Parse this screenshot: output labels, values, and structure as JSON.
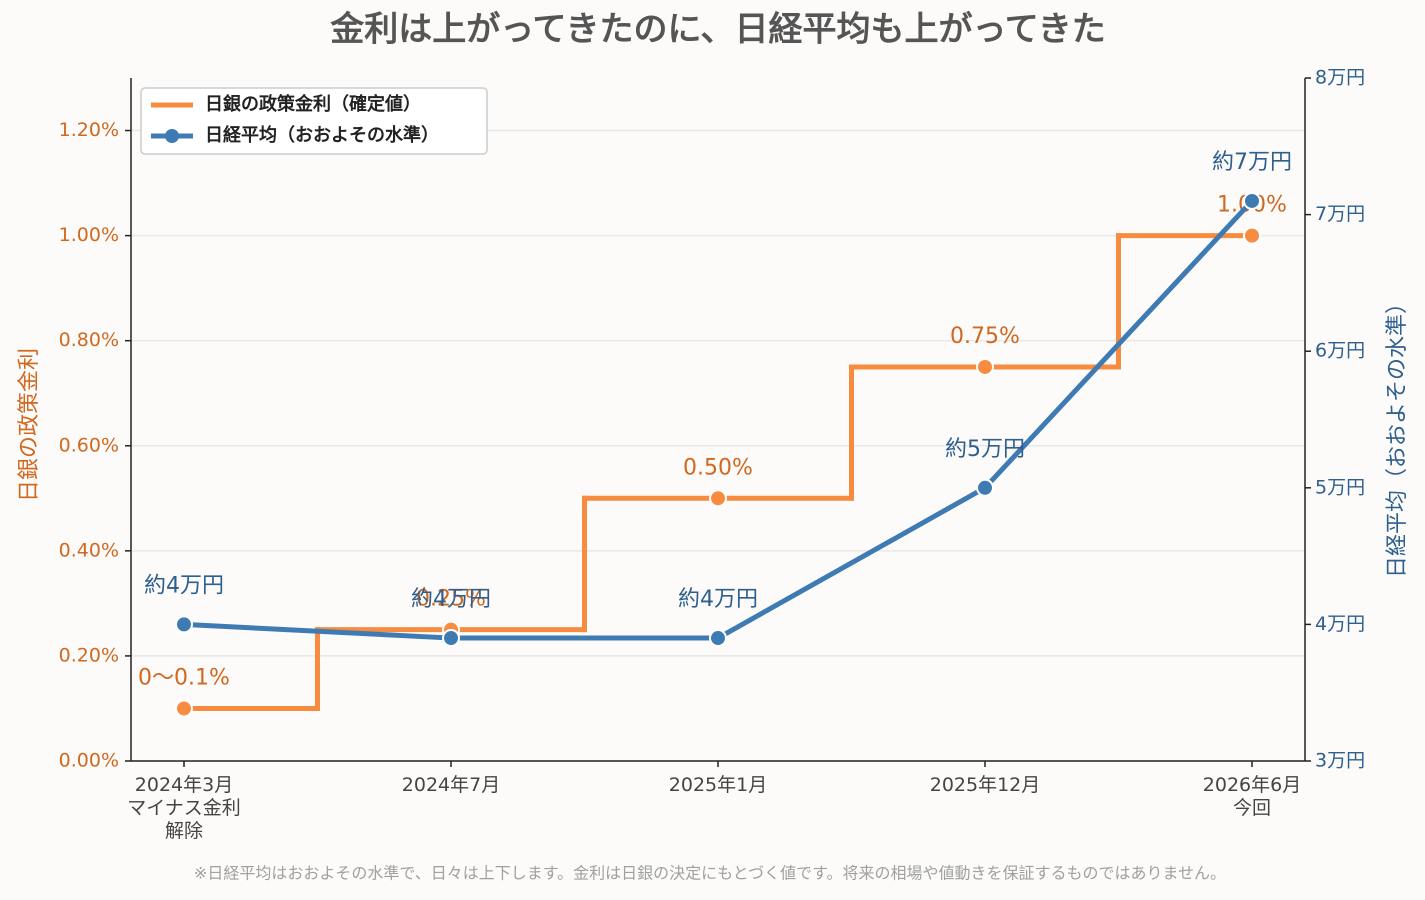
{
  "chart_data": {
    "type": "step-line-dual",
    "title": "金利は上がってきたのに、日経平均も上がってきた",
    "categories": [
      "2024年3月\nマイナス金利\n解除",
      "2024年7月",
      "2025年1月",
      "2025年12月",
      "2026年6月\n今回"
    ],
    "ylabel": "日銀の政策金利",
    "y2label": "日経平均（おおよその水準）",
    "ylim": [
      0,
      1.3
    ],
    "yticks": [
      {
        "value": 0,
        "label": "0.00%"
      },
      {
        "value": 0.2,
        "label": "0.20%"
      },
      {
        "value": 0.4,
        "label": "0.40%"
      },
      {
        "value": 0.6,
        "label": "0.60%"
      },
      {
        "value": 0.8,
        "label": "0.80%"
      },
      {
        "value": 1.0,
        "label": "1.00%"
      },
      {
        "value": 1.2,
        "label": "1.20%"
      }
    ],
    "y2lim": [
      3,
      8
    ],
    "y2ticks": [
      {
        "value": 3,
        "label": "3万円"
      },
      {
        "value": 4,
        "label": "4万円"
      },
      {
        "value": 5,
        "label": "5万円"
      },
      {
        "value": 6,
        "label": "6万円"
      },
      {
        "value": 7,
        "label": "7万円"
      },
      {
        "value": 8,
        "label": "8万円"
      }
    ],
    "grid": true,
    "legend": "upper left",
    "series": [
      {
        "name": "日銀の政策金利（確定値）",
        "color": "#f78c40",
        "label_color": "#d0691f",
        "axis": "y",
        "step": "mid",
        "values": [
          0.1,
          0.25,
          0.5,
          0.75,
          1.0
        ],
        "value_labels": [
          "0〜0.1%",
          "0.25%",
          "0.50%",
          "0.75%",
          "1.00%"
        ]
      },
      {
        "name": "日経平均（おおよその水準）",
        "color": "#3f7bb3",
        "label_color": "#2d5f8f",
        "axis": "y2",
        "values": [
          4.0,
          3.9,
          3.9,
          5.0,
          7.1
        ],
        "value_labels": [
          "約4万円",
          "約4万円",
          "約4万円",
          "約5万円",
          "約7万円"
        ]
      }
    ],
    "footnote": "※日経平均はおおよその水準で、日々は上下します。金利は日銀の決定にもとづく値です。将来の相場や値動きを保証するものではありません。"
  }
}
